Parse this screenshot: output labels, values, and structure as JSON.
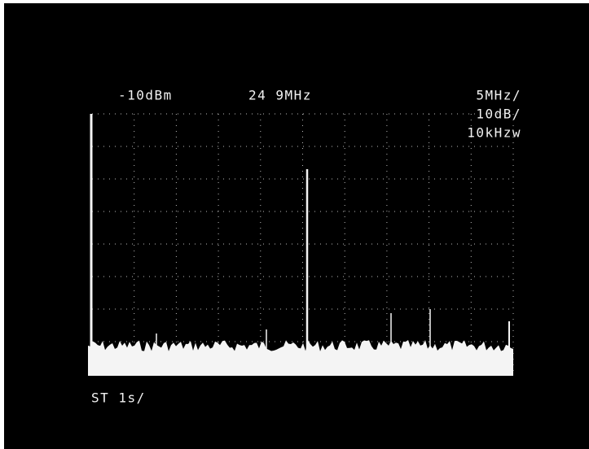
{
  "screen": {
    "reference_level": "-10dBm",
    "center_frequency": "24 9MHz",
    "span_per_division": "5MHz/",
    "scale_per_division": "10dB/",
    "resolution_bandwidth": "10kHzw",
    "sweep_time": "ST 1s/"
  }
}
